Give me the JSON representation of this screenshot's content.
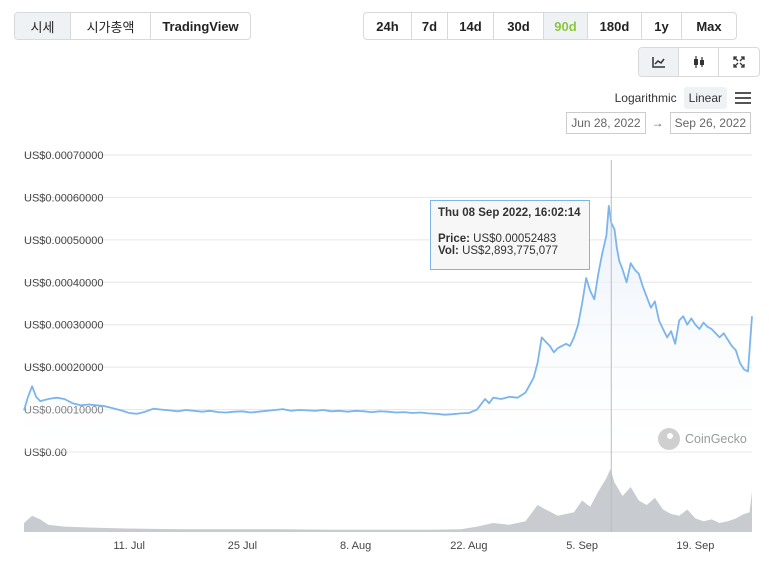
{
  "tabs": [
    "시세",
    "시가총액",
    "TradingView"
  ],
  "ranges": [
    "24h",
    "7d",
    "14d",
    "30d",
    "90d",
    "180d",
    "1y",
    "Max"
  ],
  "active_range": "90d",
  "chart_type_icons": [
    "line-chart-icon",
    "candlestick-icon",
    "expand-icon"
  ],
  "scale": {
    "log_label": "Logarithmic",
    "linear_label": "Linear",
    "selected": "Linear"
  },
  "date_range": {
    "from": "Jun 28, 2022",
    "arrow": "→",
    "to": "Sep 26, 2022"
  },
  "tooltip": {
    "title": "Thu 08 Sep 2022, 16:02:14",
    "price_label": "Price:",
    "price_value": "US$0.00052483",
    "vol_label": "Vol:",
    "vol_value": "US$2,893,775,077"
  },
  "watermark": "CoinGecko",
  "colors": {
    "line": "#7cb5ec",
    "area_top": "#e6effa",
    "volume": "#c8ccd1",
    "active": "#8dc63f"
  },
  "chart_data": {
    "type": "area",
    "y_ticks": [
      "US$0.00",
      "US$0.00010000",
      "US$0.00020000",
      "US$0.00030000",
      "US$0.00040000",
      "US$0.00050000",
      "US$0.00060000",
      "US$0.00070000"
    ],
    "y_tick_values": [
      0,
      0.0001,
      0.0002,
      0.0003,
      0.0004,
      0.0005,
      0.0006,
      0.0007
    ],
    "ylim": [
      0,
      0.0007
    ],
    "x_ticks": [
      "11. Jul",
      "25 Jul",
      "8. Aug",
      "22. Aug",
      "5. Sep",
      "19. Sep"
    ],
    "x_tick_days": [
      13,
      27,
      41,
      55,
      69,
      83
    ],
    "x_range_days": [
      0,
      90
    ],
    "series": [
      {
        "values": [
          [
            0,
            9.8e-05
          ],
          [
            0.5,
            0.00013
          ],
          [
            1.0,
            0.000155
          ],
          [
            1.5,
            0.00013
          ],
          [
            2.0,
            0.00012
          ],
          [
            3,
            0.000125
          ],
          [
            4,
            0.000128
          ],
          [
            5,
            0.000125
          ],
          [
            6,
            0.000115
          ],
          [
            7,
            0.00011
          ],
          [
            8,
            0.000112
          ],
          [
            9,
            0.00011
          ],
          [
            10,
            0.000108
          ],
          [
            11,
            0.000103
          ],
          [
            12,
            9.8e-05
          ],
          [
            13,
            9.2e-05
          ],
          [
            14,
            9e-05
          ],
          [
            15,
            9.5e-05
          ],
          [
            16,
            0.000102
          ],
          [
            17,
            0.0001
          ],
          [
            18,
            9.8e-05
          ],
          [
            19,
            9.6e-05
          ],
          [
            20,
            9.9e-05
          ],
          [
            21,
            9.7e-05
          ],
          [
            22,
            9.5e-05
          ],
          [
            23,
            9.7e-05
          ],
          [
            24,
            9.4e-05
          ],
          [
            25,
            9.3e-05
          ],
          [
            26,
            9.5e-05
          ],
          [
            27,
            9.6e-05
          ],
          [
            28,
            9.3e-05
          ],
          [
            29,
            9.5e-05
          ],
          [
            30,
            9.7e-05
          ],
          [
            31,
            9.9e-05
          ],
          [
            32,
            0.000101
          ],
          [
            33,
            9.7e-05
          ],
          [
            34,
            9.9e-05
          ],
          [
            35,
            9.8e-05
          ],
          [
            36,
            9.7e-05
          ],
          [
            37,
            9.9e-05
          ],
          [
            38,
            9.6e-05
          ],
          [
            39,
            9.7e-05
          ],
          [
            40,
            9.5e-05
          ],
          [
            41,
            9.7e-05
          ],
          [
            42,
            9.6e-05
          ],
          [
            43,
            9.4e-05
          ],
          [
            44,
            9.6e-05
          ],
          [
            45,
            9.5e-05
          ],
          [
            46,
            9.3e-05
          ],
          [
            47,
            9.4e-05
          ],
          [
            48,
            9.2e-05
          ],
          [
            49,
            9.3e-05
          ],
          [
            50,
            9.1e-05
          ],
          [
            51,
            9e-05
          ],
          [
            52,
            8.8e-05
          ],
          [
            53,
            8.9e-05
          ],
          [
            54,
            9.1e-05
          ],
          [
            55,
            9.2e-05
          ],
          [
            56,
            0.0001
          ],
          [
            57,
            0.000125
          ],
          [
            57.5,
            0.000115
          ],
          [
            58,
            0.000128
          ],
          [
            59,
            0.000125
          ],
          [
            60,
            0.00013
          ],
          [
            61,
            0.000128
          ],
          [
            62,
            0.00014
          ],
          [
            63,
            0.000175
          ],
          [
            63.5,
            0.00021
          ],
          [
            64,
            0.00027
          ],
          [
            64.5,
            0.00026
          ],
          [
            65,
            0.00025
          ],
          [
            65.5,
            0.000235
          ],
          [
            66,
            0.000245
          ],
          [
            67,
            0.000255
          ],
          [
            67.5,
            0.00025
          ],
          [
            68,
            0.00027
          ],
          [
            68.5,
            0.0003
          ],
          [
            69,
            0.00035
          ],
          [
            69.5,
            0.00041
          ],
          [
            70,
            0.00038
          ],
          [
            70.5,
            0.00036
          ],
          [
            71,
            0.00042
          ],
          [
            71.5,
            0.00047
          ],
          [
            72,
            0.00051
          ],
          [
            72.3,
            0.00058
          ],
          [
            72.6,
            0.00054
          ],
          [
            73,
            0.000525
          ],
          [
            73.3,
            0.00048
          ],
          [
            73.6,
            0.00045
          ],
          [
            74,
            0.00043
          ],
          [
            74.5,
            0.0004
          ],
          [
            75,
            0.000445
          ],
          [
            75.5,
            0.00043
          ],
          [
            76,
            0.00042
          ],
          [
            76.5,
            0.00039
          ],
          [
            77,
            0.000365
          ],
          [
            77.5,
            0.00034
          ],
          [
            78,
            0.000355
          ],
          [
            78.5,
            0.00031
          ],
          [
            79,
            0.00029
          ],
          [
            79.5,
            0.00027
          ],
          [
            80,
            0.000285
          ],
          [
            80.5,
            0.000255
          ],
          [
            81,
            0.00031
          ],
          [
            81.5,
            0.00032
          ],
          [
            82,
            0.0003
          ],
          [
            82.5,
            0.000315
          ],
          [
            83,
            0.0003
          ],
          [
            83.5,
            0.00029
          ],
          [
            84,
            0.000305
          ],
          [
            84.5,
            0.000295
          ],
          [
            85,
            0.00029
          ],
          [
            85.5,
            0.00028
          ],
          [
            86,
            0.00027
          ],
          [
            86.5,
            0.00028
          ],
          [
            87,
            0.000265
          ],
          [
            87.5,
            0.00025
          ],
          [
            88,
            0.00024
          ],
          [
            88.5,
            0.00021
          ],
          [
            89,
            0.000195
          ],
          [
            89.5,
            0.00019
          ],
          [
            90,
            0.00032
          ]
        ]
      }
    ],
    "volume": [
      [
        0,
        0.1
      ],
      [
        1,
        0.18
      ],
      [
        2,
        0.14
      ],
      [
        3,
        0.08
      ],
      [
        5,
        0.06
      ],
      [
        8,
        0.05
      ],
      [
        12,
        0.04
      ],
      [
        16,
        0.035
      ],
      [
        20,
        0.03
      ],
      [
        26,
        0.03
      ],
      [
        32,
        0.03
      ],
      [
        38,
        0.025
      ],
      [
        44,
        0.025
      ],
      [
        50,
        0.025
      ],
      [
        54,
        0.03
      ],
      [
        56,
        0.06
      ],
      [
        58,
        0.1
      ],
      [
        60,
        0.08
      ],
      [
        62,
        0.12
      ],
      [
        63.5,
        0.3
      ],
      [
        64.5,
        0.25
      ],
      [
        66,
        0.18
      ],
      [
        68,
        0.22
      ],
      [
        69,
        0.35
      ],
      [
        70,
        0.28
      ],
      [
        71,
        0.45
      ],
      [
        72,
        0.6
      ],
      [
        72.5,
        0.7
      ],
      [
        73,
        0.55
      ],
      [
        74,
        0.4
      ],
      [
        75,
        0.5
      ],
      [
        76,
        0.35
      ],
      [
        77,
        0.3
      ],
      [
        78,
        0.38
      ],
      [
        79,
        0.25
      ],
      [
        80,
        0.2
      ],
      [
        81,
        0.18
      ],
      [
        82,
        0.25
      ],
      [
        83,
        0.15
      ],
      [
        84,
        0.12
      ],
      [
        85,
        0.14
      ],
      [
        86,
        0.1
      ],
      [
        87,
        0.12
      ],
      [
        88,
        0.15
      ],
      [
        89,
        0.2
      ],
      [
        89.7,
        0.22
      ],
      [
        90,
        0.45
      ]
    ],
    "highlight_day": 72.6
  }
}
